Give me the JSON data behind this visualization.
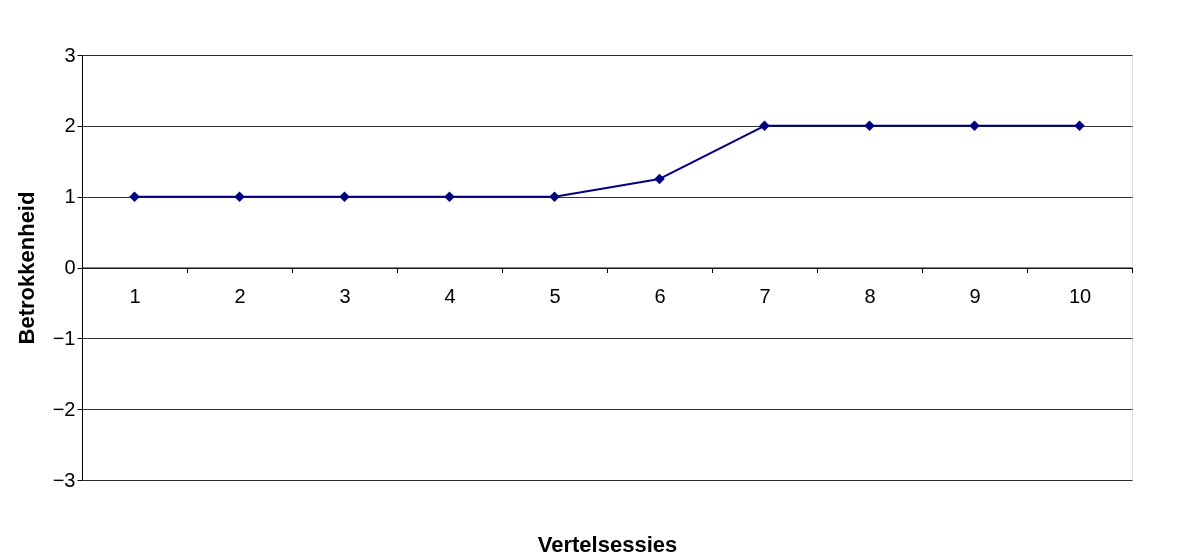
{
  "chart_data": {
    "type": "line",
    "xlabel": "Vertelsessies",
    "ylabel": "Betrokkenheid",
    "categories": [
      "1",
      "2",
      "3",
      "4",
      "5",
      "6",
      "7",
      "8",
      "9",
      "10"
    ],
    "series": [
      {
        "color": "#000080",
        "values": [
          1,
          1,
          1,
          1,
          1,
          1.25,
          2,
          2,
          2,
          2
        ]
      }
    ],
    "ylim": [
      -3,
      3
    ],
    "yticks": [
      -3,
      -2,
      -1,
      0,
      1,
      2,
      3
    ],
    "grid": "y",
    "legend": false,
    "marker": "diamond",
    "line_style": "solid"
  }
}
